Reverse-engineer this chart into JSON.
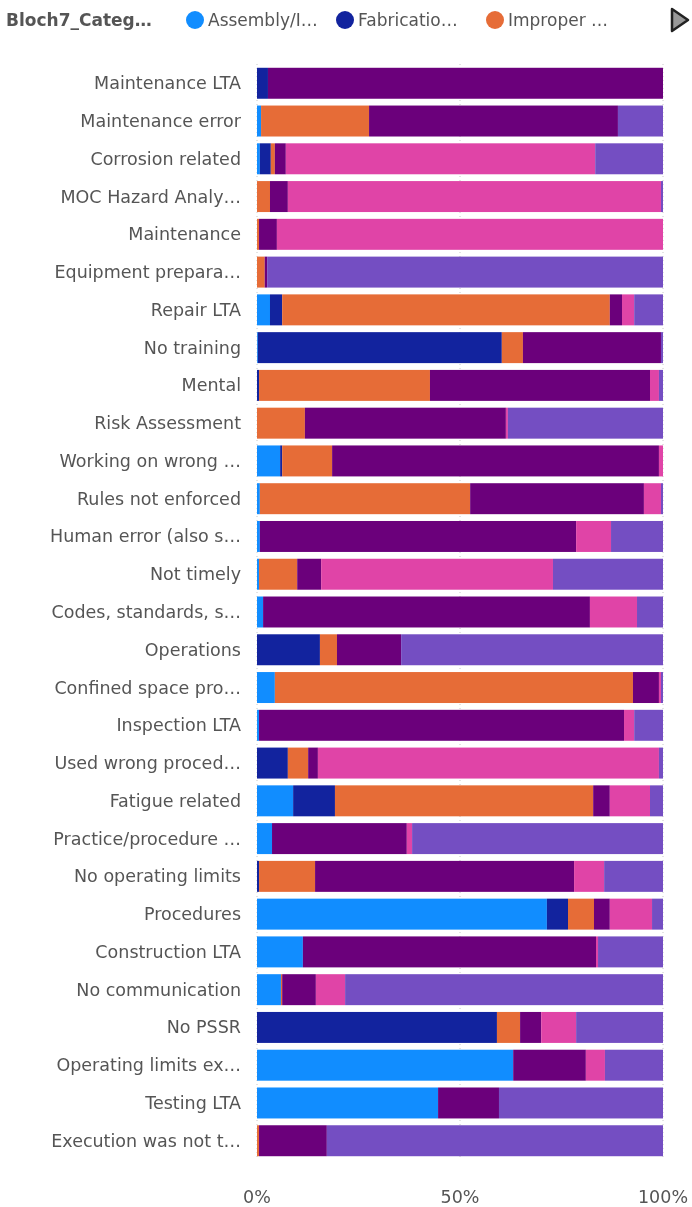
{
  "chart_data": {
    "type": "bar",
    "orientation": "horizontal",
    "stacked": true,
    "legend_title": "Bloch7_Categ…",
    "legend": "top",
    "grid": "x",
    "categories": [
      "Maintenance LTA",
      "Maintenance  error",
      "Corrosion related",
      "MOC Hazard Analy…",
      "Maintenance",
      "Equipment prepara…",
      "Repair LTA",
      "No training",
      "Mental",
      "Risk Assessment",
      "Working on wrong …",
      "Rules not enforced",
      "Human error (also s…",
      "Not timely",
      "Codes, standards, s…",
      "Operations",
      "Confined space pro…",
      "Inspection LTA",
      "Used wrong proced…",
      "Fatigue related",
      "Practice/procedure …",
      "No operating limits",
      "Procedures",
      "Construction LTA",
      "No communication",
      "No PSSR",
      "Operating limits ex…",
      "Testing LTA",
      "Execution was not t…"
    ],
    "xlim": [
      0,
      100
    ],
    "xticks": [
      {
        "value": 0,
        "label": "0%"
      },
      {
        "value": 50,
        "label": "50%"
      },
      {
        "value": 100,
        "label": "100%"
      }
    ],
    "series": [
      {
        "name": "Assembly/I…",
        "color": "#118dff",
        "values": [
          0,
          1.0,
          0.7,
          0,
          0,
          0,
          3.2,
          0.2,
          0,
          0,
          5.7,
          0.7,
          0.7,
          0.5,
          1.5,
          0,
          4.4,
          0.5,
          0,
          8.9,
          3.7,
          0,
          71.4,
          11.3,
          5.9,
          0,
          63.1,
          44.6,
          0
        ]
      },
      {
        "name": "Fabricatio…",
        "color": "#12239e",
        "values": [
          2.7,
          0,
          2.7,
          0,
          0,
          0,
          3.0,
          60.1,
          0.5,
          0,
          0.5,
          0,
          0,
          0,
          0,
          15.5,
          0,
          0,
          7.6,
          10.3,
          0,
          0.5,
          5.2,
          0,
          0,
          59.1,
          0,
          0,
          0
        ]
      },
      {
        "name": "Improper …",
        "color": "#e66c37",
        "values": [
          0,
          26.6,
          1.0,
          3.2,
          0.5,
          1.9,
          80.7,
          5.2,
          42.1,
          11.8,
          12.3,
          51.8,
          0,
          9.4,
          0,
          4.2,
          88.2,
          0,
          5.0,
          63.6,
          0,
          13.8,
          6.4,
          0,
          0.3,
          5.7,
          0,
          0,
          0.5
        ]
      },
      {
        "color": "#6b007b",
        "values": [
          97.3,
          61.3,
          2.7,
          4.4,
          4.4,
          0.6,
          3.0,
          34.0,
          54.2,
          49.5,
          80.5,
          42.8,
          77.9,
          5.9,
          80.5,
          15.8,
          6.4,
          89.9,
          2.4,
          4.1,
          33.2,
          63.8,
          3.9,
          72.2,
          8.3,
          5.2,
          17.9,
          15.0,
          16.7
        ]
      },
      {
        "color": "#e044a7",
        "values": [
          0,
          0,
          76.2,
          91.9,
          95.1,
          0,
          3.0,
          0,
          2.2,
          0.5,
          1.0,
          4.2,
          8.6,
          57.1,
          11.6,
          0,
          0.5,
          2.5,
          84.0,
          9.9,
          1.3,
          7.4,
          10.4,
          0.5,
          7.2,
          8.6,
          4.7,
          0,
          0
        ]
      },
      {
        "color": "#744ec2",
        "values": [
          0,
          11.1,
          16.7,
          0.5,
          0,
          97.5,
          7.1,
          0.5,
          1.0,
          38.2,
          0,
          0.5,
          12.8,
          27.1,
          6.4,
          64.5,
          0.5,
          7.1,
          1.0,
          3.2,
          61.8,
          14.5,
          2.7,
          16.0,
          78.3,
          21.4,
          14.3,
          40.4,
          82.8
        ]
      }
    ]
  }
}
